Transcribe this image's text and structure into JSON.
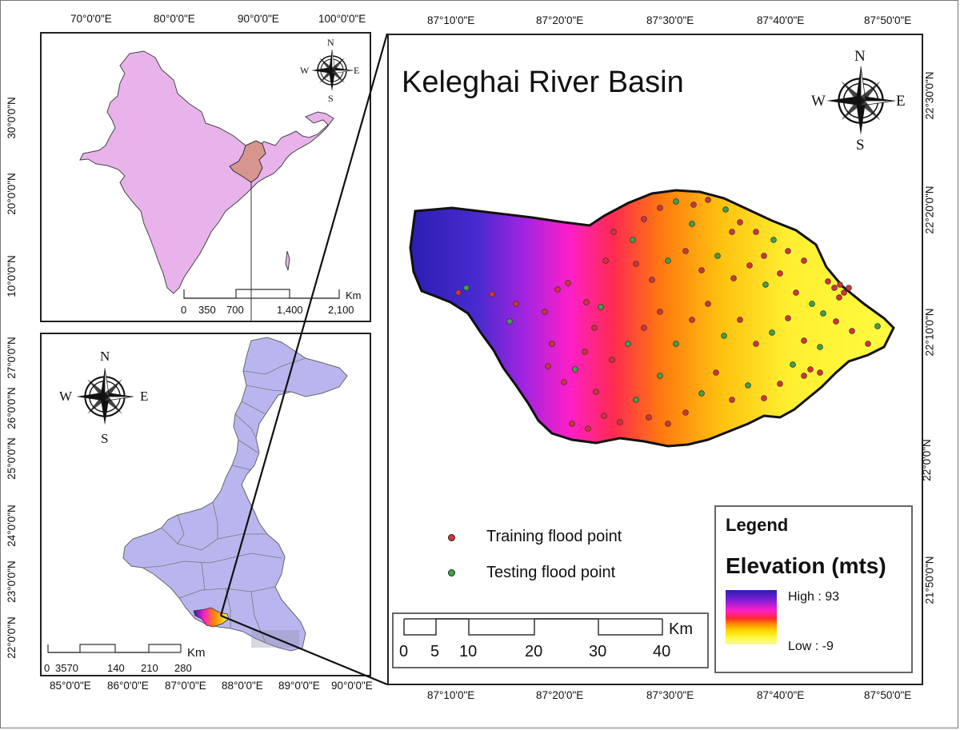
{
  "india_map": {
    "top_ticks": [
      "70°0'0\"E",
      "80°0'0\"E",
      "90°0'0\"E",
      "100°0'0\"E"
    ],
    "left_ticks": [
      "30°0'0\"N",
      "20°0'0\"N",
      "10°0'0\"N"
    ],
    "scale_labels": [
      "0",
      "350",
      "700",
      "1,400",
      "2,100"
    ],
    "scale_unit": "Km",
    "compass": {
      "n": "N",
      "s": "S",
      "e": "E",
      "w": "W"
    },
    "fill_color": "#e8b3ea",
    "state_color": "#d7958f"
  },
  "wb_map": {
    "left_ticks": [
      "27°0'0\"N",
      "26°0'0\"N",
      "25°0'0\"N",
      "24°0'0\"N",
      "23°0'0\"N",
      "22°0'0\"N"
    ],
    "bottom_ticks": [
      "85°0'0\"E",
      "86°0'0\"E",
      "87°0'0\"E",
      "88°0'0\"E",
      "89°0'0\"E",
      "90°0'0\"E"
    ],
    "scale_labels": [
      "0",
      "3570",
      "140",
      "210",
      "280"
    ],
    "scale_unit": "Km",
    "compass": {
      "n": "N",
      "s": "S",
      "e": "E",
      "w": "W"
    },
    "fill_color": "#b9b6ef"
  },
  "main_map": {
    "title": "Keleghai River Basin",
    "top_ticks": [
      "87°10'0\"E",
      "87°20'0\"E",
      "87°30'0\"E",
      "87°40'0\"E",
      "87°50'0\"E"
    ],
    "bottom_ticks": [
      "87°10'0\"E",
      "87°20'0\"E",
      "87°30'0\"E",
      "87°40'0\"E",
      "87°50'0\"E"
    ],
    "right_ticks": [
      "22°30'0\"N",
      "22°20'0\"N",
      "22°10'0\"N",
      "22°0'0\"N",
      "21°50'0\"N"
    ],
    "compass": {
      "n": "N",
      "s": "S",
      "e": "E",
      "w": "W"
    },
    "point_legend": {
      "training": {
        "label": "Training flood point",
        "color": "#d9313a"
      },
      "testing": {
        "label": "Testing flood point",
        "color": "#3aa54a"
      }
    },
    "scale_labels": [
      "0",
      "5",
      "10",
      "20",
      "30",
      "40"
    ],
    "scale_unit": "Km",
    "legend": {
      "title": "Legend",
      "subtitle": "Elevation (mts)",
      "high": "High : 93",
      "low": "Low : -9",
      "ramp": [
        "#2a1fb0",
        "#7d1fd6",
        "#ff1fc8",
        "#ff2a30",
        "#ff8a00",
        "#ffd400",
        "#fffb40",
        "#f8f8a0"
      ]
    }
  }
}
